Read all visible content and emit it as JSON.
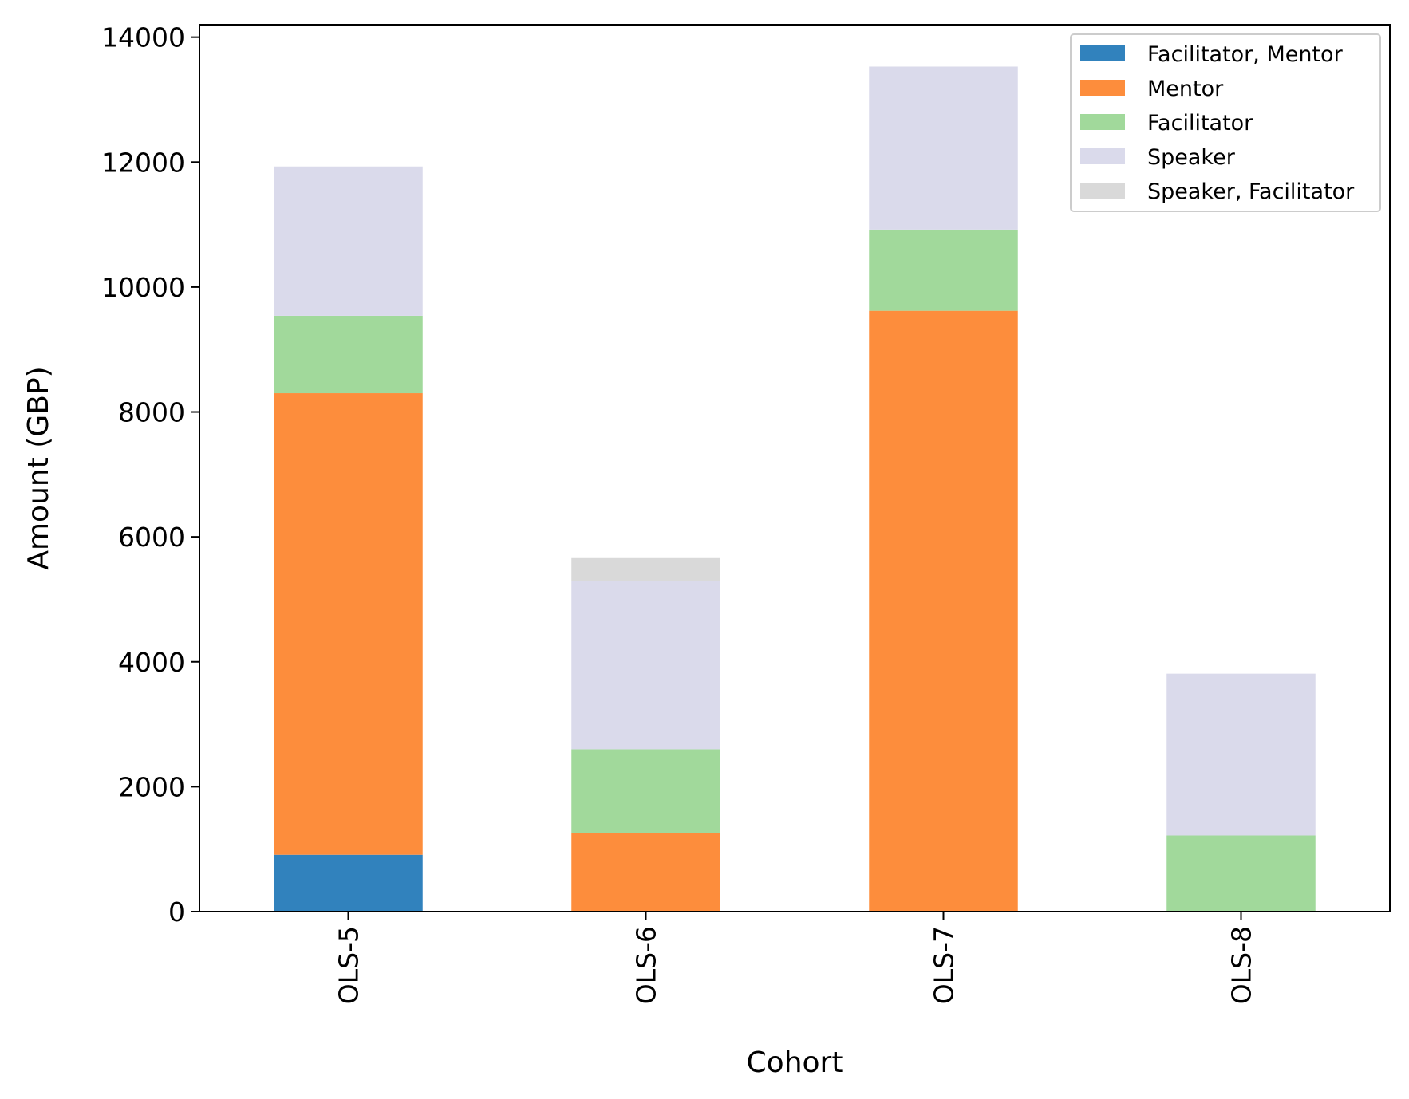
{
  "chart_data": {
    "type": "bar",
    "stacked": true,
    "categories": [
      "OLS-5",
      "OLS-6",
      "OLS-7",
      "OLS-8"
    ],
    "series": [
      {
        "name": "Facilitator, Mentor",
        "color": "#3182bd",
        "values": [
          910,
          0,
          0,
          0
        ]
      },
      {
        "name": "Mentor",
        "color": "#fd8d3c",
        "values": [
          7390,
          1260,
          9620,
          0
        ]
      },
      {
        "name": "Facilitator",
        "color": "#a1d99b",
        "values": [
          1240,
          1340,
          1300,
          1220
        ]
      },
      {
        "name": "Speaker",
        "color": "#dadaeb",
        "values": [
          2390,
          2690,
          2610,
          2590
        ]
      },
      {
        "name": "Speaker, Facilitator",
        "color": "#d9d9d9",
        "values": [
          0,
          370,
          0,
          0
        ]
      }
    ],
    "xlabel": "Cohort",
    "ylabel": "Amount (GBP)",
    "ylim": [
      0,
      14200
    ],
    "yticks": [
      0,
      2000,
      4000,
      6000,
      8000,
      10000,
      12000,
      14000
    ],
    "grid": false,
    "legend_position": "top-right"
  }
}
